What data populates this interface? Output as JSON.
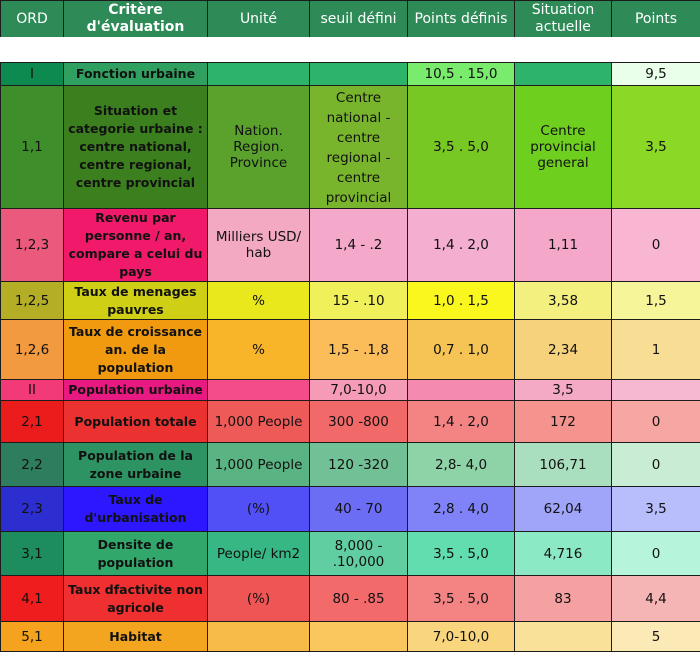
{
  "headers": [
    "ORD",
    "Critère d'évaluation",
    "Unité",
    "seuil défini",
    "Points définis",
    "Situation actuelle",
    "Points"
  ],
  "rows": [
    {
      "ord": "I",
      "critere": "Fonction urbaine",
      "unite": "",
      "seuil": "",
      "points_def": "10,5 . 15,0",
      "situation": "",
      "points": "9,5",
      "colors": [
        "#0d8a4f",
        "#30a060",
        "#2db36a",
        "#2db36a",
        "#79ec6d",
        "#2db36a",
        "#eaffea"
      ]
    },
    {
      "ord": "1,1",
      "critere": "Situation et categorie urbaine : centre national, centre regional, centre provincial",
      "unite": "Nation. Region. Province",
      "seuil": "Centre national - centre regional - centre provincial",
      "points_def": "3,5 . 5,0",
      "situation": "Centre provincial general",
      "points": "3,5",
      "colors": [
        "#3e8f2c",
        "#3c7f1f",
        "#5aa22c",
        "#79b52c",
        "#78c824",
        "#6fcf1f",
        "#8bd926"
      ]
    },
    {
      "ord": "1,2,3",
      "critere": "Revenu par personne / an, compare a celui du pays",
      "unite": "Milliers USD/ hab",
      "seuil": "1,4 - .2",
      "points_def": "1,4 . 2,0",
      "situation": "1,11",
      "points": "0",
      "colors": [
        "#eb5a7d",
        "#f0196a",
        "#f2a9c1",
        "#f4a9cb",
        "#f3aed0",
        "#f5a7c9",
        "#f8b6d2"
      ]
    },
    {
      "ord": "1,2,5",
      "critere": "Taux de menages pauvres",
      "unite": "%",
      "seuil": "15 - .10",
      "points_def": "1,0 . 1,5",
      "situation": "3,58",
      "points": "1,5",
      "colors": [
        "#b4ae27",
        "#cfcf15",
        "#e8e81d",
        "#f0f05a",
        "#faf71e",
        "#f4f07f",
        "#f7f59a"
      ]
    },
    {
      "ord": "1,2,6",
      "critere": "Taux de croissance an. de la population",
      "unite": "%",
      "seuil": "1,5 - .1,8",
      "points_def": "0,7 . 1,0",
      "situation": "2,34",
      "points": "1",
      "colors": [
        "#f19a3f",
        "#f19a10",
        "#f8b52a",
        "#fabd5a",
        "#f5c454",
        "#f7d27c",
        "#f8de94"
      ]
    },
    {
      "ord": "II",
      "critere": "Population urbaine",
      "unite": "",
      "seuil": "7,0-10,0",
      "points_def": "",
      "situation": "3,5",
      "points": "",
      "colors": [
        "#f23a79",
        "#e81980",
        "#f44c8a",
        "#f59ab7",
        "#f48ab0",
        "#f4a9c4",
        "#f6b8d0"
      ]
    },
    {
      "ord": "2,1",
      "critere": "Population totale",
      "unite": "1,000 People",
      "seuil": "300 -800",
      "points_def": "1,4 . 2,0",
      "situation": "172",
      "points": "0",
      "colors": [
        "#eb1c1c",
        "#ec3131",
        "#ee5a58",
        "#f16969",
        "#f48484",
        "#f5948f",
        "#f7a7a3"
      ]
    },
    {
      "ord": "2,2",
      "critere": "Population de la zone urbaine",
      "unite": "1,000 People",
      "seuil": "120 -320",
      "points_def": "2,8- 4,0",
      "situation": "106,71",
      "points": "0",
      "colors": [
        "#2e7d5f",
        "#2e9363",
        "#5ab383",
        "#72c096",
        "#8ed3a7",
        "#a9dfbf",
        "#c8ecd4"
      ]
    },
    {
      "ord": "2,3",
      "critere": "Taux de d'urbanisation",
      "unite": "(%)",
      "seuil": "40 - 70",
      "points_def": "2,8 . 4,0",
      "situation": "62,04",
      "points": "3,5",
      "colors": [
        "#2d2ed0",
        "#2d17ff",
        "#5050f6",
        "#6c6df5",
        "#8083f7",
        "#a0a5fa",
        "#b8bdfc"
      ]
    },
    {
      "ord": "3,1",
      "critere": "Densite de population",
      "unite": "People/ km2",
      "seuil": "8,000 - .10,000",
      "points_def": "3,5 . 5,0",
      "situation": "4,716",
      "points": "0",
      "colors": [
        "#1e8d5d",
        "#32a76b",
        "#37b784",
        "#60cea0",
        "#62ddb0",
        "#8ce9c6",
        "#b6f5dc"
      ]
    },
    {
      "ord": "4,1",
      "critere": "Taux dfactivite non agricole",
      "unite": "(%)",
      "seuil": "80 - .85",
      "points_def": "3,5 . 5,0",
      "situation": "83",
      "points": "4,4",
      "colors": [
        "#ef1d1d",
        "#f03030",
        "#f05555",
        "#f26a6a",
        "#f48484",
        "#f5a1a1",
        "#f6b5b5"
      ]
    },
    {
      "ord": "5,1",
      "critere": "Habitat",
      "unite": "",
      "seuil": "",
      "points_def": "7,0-10,0",
      "situation": "",
      "points": "5",
      "colors": [
        "#f5a21e",
        "#f4a51f",
        "#f7bc48",
        "#f9c75e",
        "#f9d67d",
        "#fae19a",
        "#fbeab6"
      ]
    }
  ]
}
